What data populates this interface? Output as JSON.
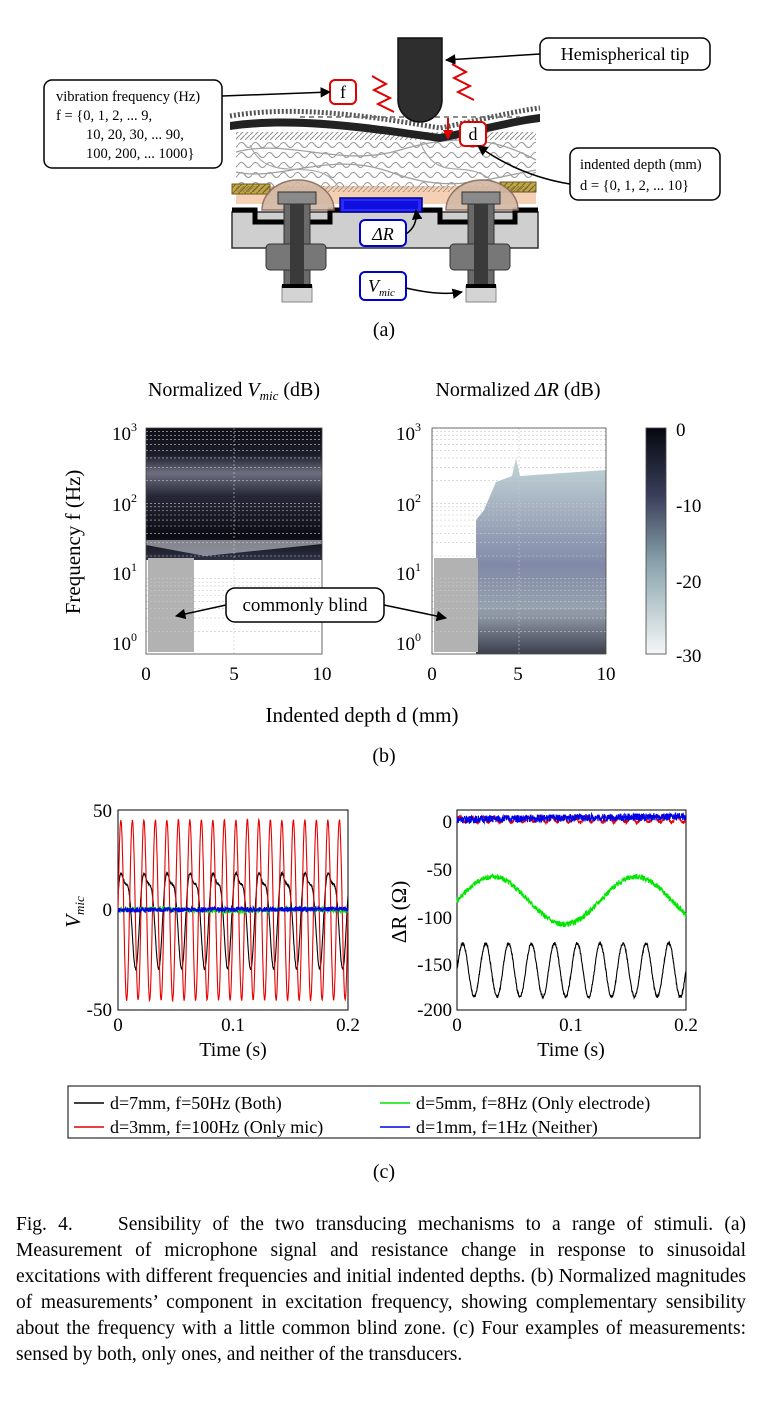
{
  "panel_a": {
    "label": "(a)",
    "tip_label": "Hemispherical tip",
    "freq_box": {
      "title": "vibration frequency (Hz)",
      "line1": "f = {0, 1, 2, ... 9,",
      "line2": "10, 20, 30, ... 90,",
      "line3": "100, 200, ... 1000}"
    },
    "depth_box": {
      "title": "indented depth (mm)",
      "line1": "d = {0, 1, 2, ... 10}"
    },
    "f_tag": "f",
    "d_tag": "d",
    "dR_tag": "ΔR",
    "vmic_tag_main": "V",
    "vmic_tag_sub": "mic"
  },
  "panel_b": {
    "label": "(b)",
    "left_title_pre": "Normalized ",
    "left_title_sym": "V",
    "left_title_sub": "mic",
    "left_title_post": " (dB)",
    "right_title_pre": "Normalized ",
    "right_title_sym": "ΔR",
    "right_title_post": " (dB)",
    "ylabel": "Frequency f (Hz)",
    "xlabel": "Indented depth d (mm)",
    "annotation": "commonly blind",
    "ytick_base": "10",
    "ytick_exps": [
      "3",
      "2",
      "1",
      "0"
    ],
    "xticks": [
      "0",
      "5",
      "10"
    ],
    "colorbar_ticks": [
      "0",
      "-10",
      "-20",
      "-30"
    ]
  },
  "panel_c": {
    "label": "(c)",
    "left_ylabel_main": "V",
    "left_ylabel_sub": "mic",
    "right_ylabel": "ΔR (Ω)",
    "xlabel": "Time (s)",
    "left_yticks": [
      "50",
      "0",
      "-50"
    ],
    "right_yticks": [
      "0",
      "-50",
      "-100",
      "-150",
      "-200"
    ],
    "xticks": [
      "0",
      "0.1",
      "0.2"
    ],
    "legend": [
      {
        "text": "d=7mm, f=50Hz (Both)",
        "color": "#000000"
      },
      {
        "text": "d=5mm, f=8Hz (Only electrode)",
        "color": "#00e600"
      },
      {
        "text": "d=3mm, f=100Hz (Only mic)",
        "color": "#e60000"
      },
      {
        "text": "d=1mm, f=1Hz (Neither)",
        "color": "#0000e6"
      }
    ]
  },
  "caption": {
    "head": "Fig. 4.",
    "text": "Sensibility of the two transducing mechanisms to a range of stimuli. (a) Measurement of microphone signal and resistance change in response to sinusoidal excitations with different frequencies and initial indented depths. (b) Normalized magnitudes of measurements’ component in excitation frequency, showing complementary sensibility about the frequency with a little common blind zone. (c) Four examples of measurements: sensed by both, only ones, and neither of the transducers."
  },
  "chart_data": [
    {
      "type": "heatmap",
      "title": "Normalized Vmic (dB)",
      "xlabel": "Indented depth d (mm)",
      "ylabel": "Frequency f (Hz)",
      "x": [
        0,
        1,
        2,
        3,
        4,
        5,
        6,
        7,
        8,
        9,
        10
      ],
      "y_scale": "log",
      "ylim": [
        1,
        1000
      ],
      "xlim": [
        0,
        10
      ],
      "clim": [
        -30,
        0
      ],
      "regions": [
        {
          "f_range": [
            100,
            1000
          ],
          "d_range": [
            0,
            10
          ],
          "value_db": -5
        },
        {
          "f_range": [
            30,
            100
          ],
          "d_range": [
            0,
            10
          ],
          "value_db": -8
        },
        {
          "f_range": [
            15,
            30
          ],
          "d_range": [
            0,
            10
          ],
          "value_db": -16
        },
        {
          "f_range": [
            1,
            15
          ],
          "d_range": [
            3,
            10
          ],
          "value_db": -30
        }
      ],
      "blind_zone": {
        "d_range": [
          0,
          2.5
        ],
        "f_range": [
          1,
          15
        ],
        "label": "commonly blind"
      }
    },
    {
      "type": "heatmap",
      "title": "Normalized ΔR (dB)",
      "xlabel": "Indented depth d (mm)",
      "ylabel": "Frequency f (Hz)",
      "x": [
        0,
        1,
        2,
        3,
        4,
        5,
        6,
        7,
        8,
        9,
        10
      ],
      "y_scale": "log",
      "ylim": [
        1,
        1000
      ],
      "xlim": [
        0,
        10
      ],
      "clim": [
        -30,
        0
      ],
      "regions": [
        {
          "f_range": [
            1,
            200
          ],
          "d_range": [
            3,
            10
          ],
          "value_db": -10
        },
        {
          "f_range": [
            1,
            3
          ],
          "d_range": [
            3,
            10
          ],
          "value_db": -18
        },
        {
          "f_range": [
            200,
            1000
          ],
          "d_range": [
            0,
            10
          ],
          "value_db": -30
        }
      ],
      "blind_zone": {
        "d_range": [
          0,
          2.5
        ],
        "f_range": [
          1,
          15
        ],
        "label": "commonly blind"
      }
    },
    {
      "type": "line",
      "ylabel": "Vmic",
      "xlabel": "Time (s)",
      "xlim": [
        0,
        0.2
      ],
      "ylim": [
        -50,
        50
      ],
      "series": [
        {
          "name": "d=7mm, f=50Hz (Both)",
          "color": "#000000",
          "freq_hz": 50,
          "amplitude": 22,
          "offset": 0
        },
        {
          "name": "d=3mm, f=100Hz (Only mic)",
          "color": "#e60000",
          "freq_hz": 100,
          "amplitude": 45,
          "offset": 0
        },
        {
          "name": "d=5mm, f=8Hz (Only electrode)",
          "color": "#00e600",
          "freq_hz": 8,
          "amplitude": 0.5,
          "offset": 0
        },
        {
          "name": "d=1mm, f=1Hz (Neither)",
          "color": "#0000e6",
          "freq_hz": 1,
          "amplitude": 0.5,
          "offset": 0
        }
      ]
    },
    {
      "type": "line",
      "ylabel": "ΔR (Ω)",
      "xlabel": "Time (s)",
      "xlim": [
        0,
        0.2
      ],
      "ylim": [
        -200,
        10
      ],
      "series": [
        {
          "name": "d=7mm, f=50Hz (Both)",
          "color": "#000000",
          "freq_hz": 50,
          "amplitude": 28,
          "offset": -158
        },
        {
          "name": "d=5mm, f=8Hz (Only electrode)",
          "color": "#00e600",
          "freq_hz": 8,
          "amplitude": 25,
          "offset": -85
        },
        {
          "name": "d=3mm, f=100Hz (Only mic)",
          "color": "#e60000",
          "freq_hz": 100,
          "amplitude": 3,
          "offset": 0
        },
        {
          "name": "d=1mm, f=1Hz (Neither)",
          "color": "#0000e6",
          "freq_hz": 1,
          "amplitude": 3,
          "offset": 0
        }
      ]
    }
  ]
}
